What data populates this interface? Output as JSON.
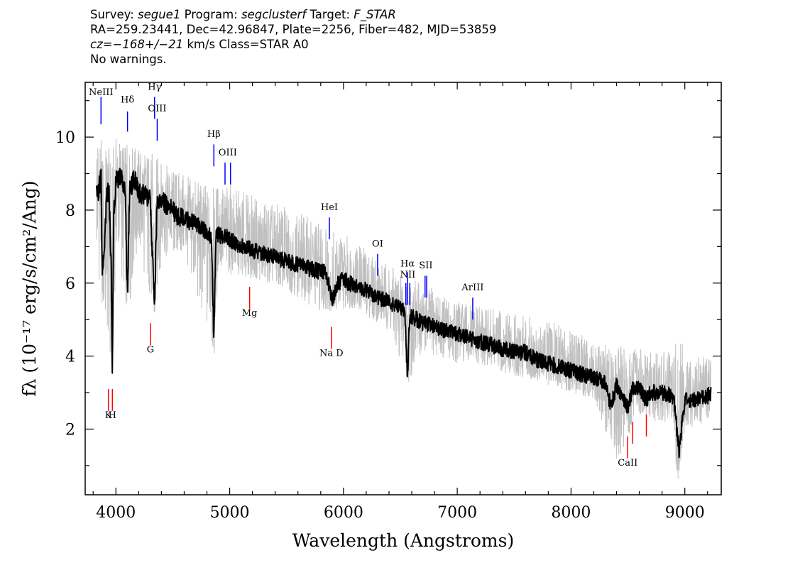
{
  "header": {
    "line1": {
      "survey_label": "Survey: ",
      "survey": "segue1",
      "program_label": " Program: ",
      "program": "segclusterf",
      "target_label": " Target: ",
      "target": "F_STAR"
    },
    "line2": "RA=259.23441, Dec=42.96847, Plate=2256, Fiber=482, MJD=53859",
    "line3": {
      "cz": "cz=−168+/−21",
      "rest": " km/s Class=STAR A0"
    },
    "line4": "No warnings."
  },
  "chart_data": {
    "type": "line",
    "xlabel": "Wavelength (Angstroms)",
    "ylabel": "fλ (10⁻¹⁷ erg/s/cm²/Ang)",
    "xlim": [
      3730,
      9320
    ],
    "ylim": [
      0.2,
      11.5
    ],
    "x_ticks": [
      4000,
      5000,
      6000,
      7000,
      8000,
      9000
    ],
    "y_ticks": [
      2,
      4,
      6,
      8,
      10
    ],
    "grid": false,
    "series": [
      {
        "role": "flux",
        "color": "#000000",
        "x": [
          3830,
          3850,
          3870,
          3880,
          3900,
          3920,
          3940,
          3960,
          3968,
          3980,
          4000,
          4040,
          4080,
          4102,
          4120,
          4160,
          4200,
          4250,
          4300,
          4340,
          4360,
          4400,
          4450,
          4500,
          4550,
          4600,
          4650,
          4700,
          4750,
          4800,
          4840,
          4861,
          4880,
          4920,
          4960,
          5000,
          5050,
          5100,
          5150,
          5200,
          5300,
          5400,
          5500,
          5600,
          5700,
          5800,
          5850,
          5900,
          5950,
          6000,
          6100,
          6200,
          6300,
          6400,
          6500,
          6540,
          6563,
          6580,
          6600,
          6650,
          6700,
          6800,
          6900,
          7000,
          7100,
          7200,
          7300,
          7400,
          7500,
          7600,
          7700,
          7800,
          7900,
          8000,
          8100,
          8200,
          8300,
          8350,
          8400,
          8498,
          8542,
          8600,
          8662,
          8700,
          8800,
          8900,
          8950,
          9000,
          9100,
          9200,
          9230
        ],
        "values": [
          8.4,
          8.6,
          8.9,
          6.2,
          7.0,
          8.6,
          8.4,
          6.3,
          3.4,
          7.8,
          8.8,
          9.0,
          8.6,
          5.6,
          8.5,
          8.9,
          8.5,
          8.4,
          8.3,
          5.3,
          8.1,
          8.3,
          8.1,
          8.0,
          7.8,
          7.8,
          7.7,
          7.6,
          7.5,
          7.4,
          7.3,
          4.4,
          7.4,
          7.3,
          7.3,
          7.2,
          7.1,
          7.0,
          7.0,
          6.9,
          6.8,
          6.7,
          6.6,
          6.5,
          6.4,
          6.3,
          6.3,
          5.5,
          6.0,
          6.1,
          5.9,
          5.8,
          5.6,
          5.5,
          5.3,
          5.2,
          3.4,
          5.0,
          5.1,
          5.0,
          4.9,
          4.8,
          4.7,
          4.6,
          4.5,
          4.4,
          4.3,
          4.2,
          4.1,
          4.1,
          3.9,
          3.8,
          3.7,
          3.6,
          3.5,
          3.4,
          3.3,
          2.6,
          3.2,
          2.6,
          3.1,
          3.1,
          2.8,
          3.0,
          3.0,
          2.9,
          1.4,
          2.8,
          2.8,
          2.9,
          3.0
        ]
      },
      {
        "role": "noise",
        "color": "#c0c0c0",
        "x": [
          3830,
          3880,
          3968,
          4000,
          4102,
          4200,
          4340,
          4400,
          4600,
          4861,
          4900,
          5200,
          5500,
          5800,
          6100,
          6400,
          6563,
          6700,
          7000,
          7300,
          7600,
          7900,
          8200,
          8400,
          8600,
          8900,
          8940,
          9000,
          9230
        ],
        "upper": [
          10.5,
          9.8,
          9.7,
          10.0,
          9.8,
          9.7,
          9.6,
          9.3,
          9.0,
          8.6,
          8.8,
          8.4,
          8.1,
          7.7,
          7.2,
          6.5,
          6.2,
          6.0,
          5.5,
          5.3,
          5.1,
          4.9,
          4.4,
          4.3,
          4.2,
          4.1,
          5.3,
          3.9,
          4.2
        ],
        "lower": [
          6.5,
          5.3,
          3.0,
          6.9,
          5.0,
          6.9,
          4.8,
          6.6,
          6.7,
          3.8,
          6.3,
          6.1,
          5.8,
          5.2,
          5.3,
          4.7,
          3.2,
          4.1,
          3.8,
          3.6,
          3.4,
          3.1,
          2.8,
          1.1,
          2.4,
          2.0,
          0.2,
          2.0,
          2.2
        ]
      }
    ],
    "line_markers": [
      {
        "label": "NeIII",
        "wavelength": 3869,
        "color": "#0000ff",
        "y_top": 11.1,
        "y_bottom": 10.35,
        "label_y": 11.15
      },
      {
        "label": "Hδ",
        "wavelength": 4102,
        "color": "#0000ff",
        "y_top": 10.7,
        "y_bottom": 10.15,
        "label_y": 10.95
      },
      {
        "label": "Hγ",
        "wavelength": 4340,
        "color": "#0000ff",
        "y_top": 11.1,
        "y_bottom": 10.5,
        "label_y": 11.3
      },
      {
        "label": "OIII",
        "wavelength": 4363,
        "color": "#0000ff",
        "y_top": 10.5,
        "y_bottom": 9.9,
        "label_y": 10.7
      },
      {
        "label": "Hβ",
        "wavelength": 4861,
        "color": "#0000ff",
        "y_top": 9.8,
        "y_bottom": 9.2,
        "label_y": 10.0
      },
      {
        "label": "OIII",
        "wavelength": 4959,
        "color": "#0000ff",
        "y_top": 9.3,
        "y_bottom": 8.7,
        "label_y": 9.5
      },
      {
        "label": "OIII",
        "wavelength": 5007,
        "color": "#0000ff",
        "y_top": 9.3,
        "y_bottom": 8.7,
        "label_y": 9.5
      },
      {
        "label": "HeI",
        "wavelength": 5876,
        "color": "#0000ff",
        "y_top": 7.8,
        "y_bottom": 7.2,
        "label_y": 8.0
      },
      {
        "label": "OI",
        "wavelength": 6300,
        "color": "#0000ff",
        "y_top": 6.8,
        "y_bottom": 6.2,
        "label_y": 7.0
      },
      {
        "label": "NII",
        "wavelength": 6548,
        "color": "#0000ff",
        "y_top": 6.0,
        "y_bottom": 5.4,
        "label_y": 6.15
      },
      {
        "label": "Hα",
        "wavelength": 6563,
        "color": "#0000ff",
        "y_top": 6.3,
        "y_bottom": 5.4,
        "label_y": 6.45
      },
      {
        "label": "NII",
        "wavelength": 6583,
        "color": "#0000ff",
        "y_top": 6.0,
        "y_bottom": 5.4,
        "label_y": 6.15
      },
      {
        "label": "SII",
        "wavelength": 6717,
        "color": "#0000ff",
        "y_top": 6.2,
        "y_bottom": 5.6,
        "label_y": 6.4
      },
      {
        "label": "SII",
        "wavelength": 6731,
        "color": "#0000ff",
        "y_top": 6.2,
        "y_bottom": 5.6,
        "label_y": 6.4
      },
      {
        "label": "ArIII",
        "wavelength": 7136,
        "color": "#0000ff",
        "y_top": 5.6,
        "y_bottom": 5.0,
        "label_y": 5.8
      },
      {
        "label": "K",
        "wavelength": 3934,
        "color": "#ff0000",
        "y_top": 3.1,
        "y_bottom": 2.5,
        "label_y": 2.3
      },
      {
        "label": "H",
        "wavelength": 3969,
        "color": "#ff0000",
        "y_top": 3.1,
        "y_bottom": 2.5,
        "label_y": 2.3
      },
      {
        "label": "G",
        "wavelength": 4304,
        "color": "#ff0000",
        "y_top": 4.9,
        "y_bottom": 4.3,
        "label_y": 4.1
      },
      {
        "label": "Mg",
        "wavelength": 5175,
        "color": "#ff0000",
        "y_top": 5.9,
        "y_bottom": 5.3,
        "label_y": 5.1
      },
      {
        "label": "Na  D",
        "wavelength": 5894,
        "color": "#ff0000",
        "y_top": 4.8,
        "y_bottom": 4.2,
        "label_y": 4.0
      },
      {
        "label": "CaII",
        "wavelength": 8498,
        "color": "#ff0000",
        "y_top": 1.8,
        "y_bottom": 1.2,
        "label_y": 1.0
      },
      {
        "label": "",
        "wavelength": 8542,
        "color": "#ff0000",
        "y_top": 2.2,
        "y_bottom": 1.6
      },
      {
        "label": "",
        "wavelength": 8662,
        "color": "#ff0000",
        "y_top": 2.4,
        "y_bottom": 1.8
      }
    ]
  }
}
